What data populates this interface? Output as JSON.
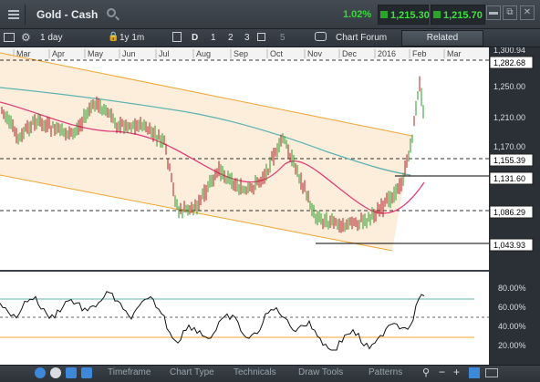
{
  "header": {
    "title": "Gold - Cash",
    "change": "1.02%",
    "bid": "1,215.30",
    "ask": "1,215.70",
    "colors": {
      "up": "#36d936",
      "panel": "#2b3036"
    }
  },
  "toolbar": {
    "interval": "1 day",
    "range": "1y 1m",
    "chart_type_letter": "D",
    "layouts": [
      "1",
      "2",
      "3"
    ],
    "layout_extra": "5",
    "forum": "Chart Forum",
    "related": "Related"
  },
  "footer": {
    "tabs": [
      "Timeframe",
      "Chart Type",
      "Technicals",
      "Draw Tools",
      "Patterns"
    ]
  },
  "chart_data": {
    "type": "candlestick",
    "x_labels": [
      "Mar",
      "Apr",
      "May",
      "Jun",
      "Jul",
      "Aug",
      "Sep",
      "Oct",
      "Nov",
      "Dec",
      "2016",
      "Feb",
      "Mar"
    ],
    "y_ticks": [
      "1,300.94",
      "1,282.68",
      "1,250.00",
      "1,210.00",
      "1,170.00",
      "1,155.39",
      "1,131.60",
      "1,086.29",
      "1,043.93"
    ],
    "oscillator_ticks": [
      "80.00%",
      "60.00%",
      "40.00%",
      "20.00%"
    ]
  }
}
